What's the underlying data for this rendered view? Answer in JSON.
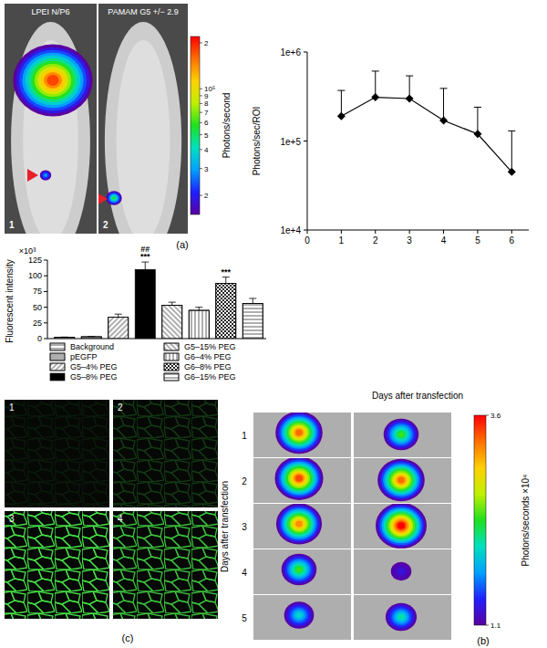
{
  "chart_data": [
    {
      "type": "bioluminescence_images",
      "panel_label": "(a)",
      "images": [
        {
          "label": "LPEI N/P6",
          "number": "1",
          "peaks": [
            180000,
            30000
          ]
        },
        {
          "label": "PAMAM G5 +/− 2.9",
          "number": "2",
          "peaks": [
            55000
          ]
        }
      ],
      "colorbar": {
        "title": "Photons/second",
        "log": true,
        "range": [
          15000,
          220000
        ],
        "ticks": [
          {
            "value": 200000,
            "label": "2"
          },
          {
            "value": 100000,
            "label": "10⁵"
          },
          {
            "value": 90000,
            "label": "9"
          },
          {
            "value": 80000,
            "label": "8"
          },
          {
            "value": 70000,
            "label": "7"
          },
          {
            "value": 60000,
            "label": "6"
          },
          {
            "value": 50000,
            "label": "5"
          },
          {
            "value": 40000,
            "label": "4"
          },
          {
            "value": 30000,
            "label": "3"
          },
          {
            "value": 20000,
            "label": "2"
          }
        ],
        "colors": [
          "#5a00a0",
          "#2020ff",
          "#00a0ff",
          "#00e0c0",
          "#20e020",
          "#c0f000",
          "#ffd000",
          "#ff7000",
          "#ff0000"
        ]
      }
    },
    {
      "type": "line",
      "x": [
        1,
        2,
        3,
        4,
        5,
        6
      ],
      "values": [
        190000,
        310000,
        300000,
        170000,
        120000,
        45000
      ],
      "errors": [
        180000,
        300000,
        240000,
        220000,
        120000,
        85000
      ],
      "color": "#000000",
      "marker": "diamond",
      "log": "y",
      "xlim": [
        0,
        6.5
      ],
      "xticks": [
        0,
        1,
        2,
        3,
        4,
        5,
        6
      ],
      "ylim": [
        10000,
        1000000
      ],
      "yticks": [
        {
          "value": 10000,
          "label": "1e+4"
        },
        {
          "value": 100000,
          "label": "1e+5"
        },
        {
          "value": 1000000,
          "label": "1e+6"
        }
      ],
      "x_label": "Days after transfection",
      "y_label": "Photons/sec/ROI"
    },
    {
      "type": "bar",
      "categories": [
        "Background",
        "pEGFP",
        "G5–4% PEG",
        "G5–8% PEG",
        "G5–15% PEG",
        "G6–4% PEG",
        "G6–8% PEG",
        "G6–15% PEG"
      ],
      "values": [
        2,
        3,
        34,
        110,
        53,
        45,
        88,
        56
      ],
      "errors": [
        0.5,
        0.5,
        5,
        12,
        5,
        5,
        10,
        8
      ],
      "colors": [
        "#ffffff",
        "#ffffff",
        "#ffffff",
        "#000000",
        "#ffffff",
        "#ffffff",
        "#ffffff",
        "#ffffff"
      ],
      "annotations": [
        null,
        null,
        null,
        [
          "##",
          "***"
        ],
        null,
        null,
        [
          "***"
        ],
        null
      ],
      "ylim": [
        0,
        125
      ],
      "yticks": [
        0,
        25,
        50,
        75,
        100,
        125
      ],
      "y_label": "Fluorescent intensity",
      "y_unit": "×10³",
      "legend": "bottom",
      "tick_labels": "y"
    },
    {
      "type": "micrographs",
      "panel_label": "(c)",
      "images": [
        "1",
        "2",
        "3",
        "4"
      ]
    },
    {
      "type": "bioluminescence_grid",
      "panel_label": "(b)",
      "row_title": "Days after transfection",
      "row_labels": [
        "1",
        "2",
        "3",
        "4",
        "5"
      ],
      "peaks": [
        [
          3.3,
          2.4
        ],
        [
          3.4,
          3.3
        ],
        [
          3.2,
          3.6
        ],
        [
          2.4,
          1.3
        ],
        [
          2.0,
          2.1
        ]
      ],
      "colorbar": {
        "title": "Photons/seconds ×10⁴",
        "range": [
          1.1,
          3.6
        ],
        "ticks": [
          1.1,
          3.6
        ],
        "colors": [
          "#5a00a0",
          "#2020ff",
          "#00a0ff",
          "#00e0c0",
          "#20e020",
          "#c0f000",
          "#ffd000",
          "#ff7000",
          "#ff0000"
        ]
      }
    }
  ]
}
